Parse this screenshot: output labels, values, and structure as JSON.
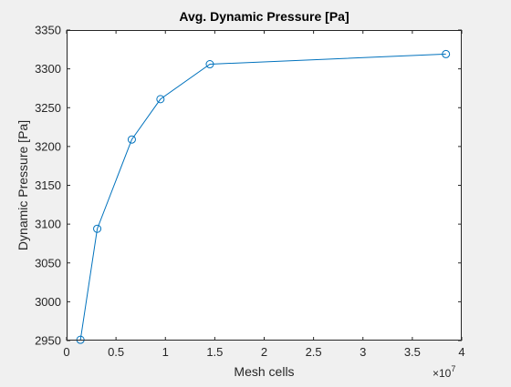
{
  "chart_data": {
    "type": "line",
    "title": "Avg. Dynamic Pressure [Pa]",
    "xlabel": "Mesh cells",
    "ylabel": "Dynamic Pressure [Pa]",
    "x_exponent_label": "×10",
    "x_exponent_power": "7",
    "xlim": [
      0,
      4
    ],
    "ylim": [
      2950,
      3350
    ],
    "x_ticks": [
      0,
      0.5,
      1,
      1.5,
      2,
      2.5,
      3,
      3.5,
      4
    ],
    "x_tick_labels": [
      "0",
      "0.5",
      "1",
      "1.5",
      "2",
      "2.5",
      "3",
      "3.5",
      "4"
    ],
    "y_ticks": [
      2950,
      3000,
      3050,
      3100,
      3150,
      3200,
      3250,
      3300,
      3350
    ],
    "y_tick_labels": [
      "2950",
      "3000",
      "3050",
      "3100",
      "3150",
      "3200",
      "3250",
      "3300",
      "3350"
    ],
    "grid": false,
    "series": [
      {
        "x": [
          0.14,
          0.31,
          0.66,
          0.95,
          1.45,
          3.84
        ],
        "y": [
          2951,
          3094,
          3209,
          3261,
          3306,
          3319
        ],
        "color": "#0072bd",
        "marker": "circle"
      }
    ]
  }
}
